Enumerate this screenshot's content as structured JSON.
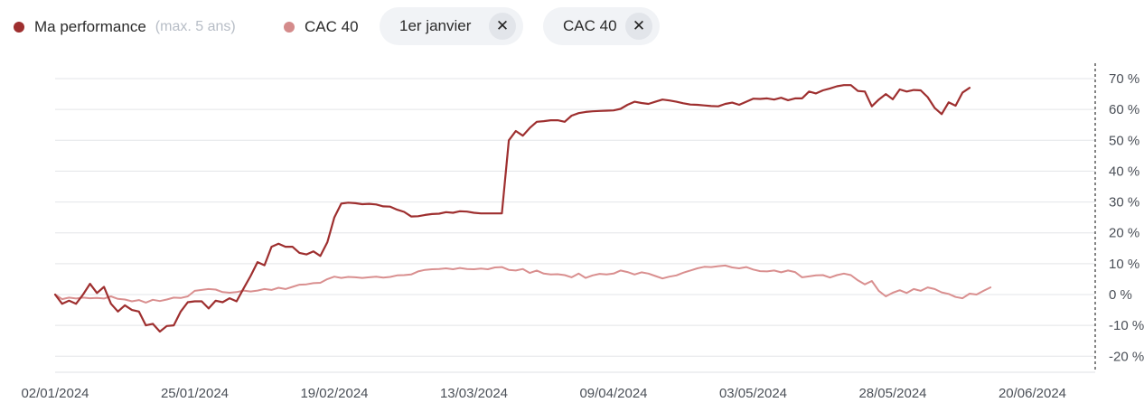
{
  "legend": {
    "performance": {
      "label": "Ma performance",
      "note": "(max. 5 ans)",
      "color": "#9e2f2f"
    },
    "cac": {
      "label": "CAC 40",
      "color": "#d48b8b"
    }
  },
  "filters": [
    {
      "label": "1er janvier",
      "close_glyph": "✕"
    },
    {
      "label": "CAC 40",
      "close_glyph": "✕"
    }
  ],
  "colors": {
    "performance": "#9e2f2f",
    "cac": "#d98f8f",
    "grid": "#e3e5e8",
    "axis": "#333333"
  },
  "chart_data": {
    "type": "line",
    "x_tick_labels": [
      "02/01/2024",
      "25/01/2024",
      "19/02/2024",
      "13/03/2024",
      "09/04/2024",
      "03/05/2024",
      "28/05/2024",
      "20/06/2024"
    ],
    "y_tick_labels": [
      "70 %",
      "60 %",
      "50 %",
      "40 %",
      "30 %",
      "20 %",
      "10 %",
      "0 %",
      "-10 %",
      "-20 %"
    ],
    "y_ticks": [
      70,
      60,
      50,
      40,
      30,
      20,
      10,
      0,
      -10,
      -20
    ],
    "ylim": [
      -25,
      73
    ],
    "x_range": [
      0,
      149
    ],
    "x_tick_index": [
      0,
      20,
      40,
      60,
      80,
      100,
      120,
      140
    ],
    "legend_position": "top-left",
    "grid": true,
    "series": [
      {
        "name": "Ma performance",
        "points": [
          [
            0,
            0
          ],
          [
            1,
            -3
          ],
          [
            2,
            -2
          ],
          [
            3,
            -3
          ],
          [
            4,
            0
          ],
          [
            5,
            3.5
          ],
          [
            6,
            0.5
          ],
          [
            7,
            2.5
          ],
          [
            8,
            -3
          ],
          [
            9,
            -5.5
          ],
          [
            10,
            -3.5
          ],
          [
            11,
            -5
          ],
          [
            12,
            -5.5
          ],
          [
            13,
            -10
          ],
          [
            14,
            -9.5
          ],
          [
            15,
            -12
          ],
          [
            16,
            -10.2
          ],
          [
            17,
            -10
          ],
          [
            18,
            -5.5
          ],
          [
            19,
            -2.5
          ],
          [
            20,
            -2.2
          ],
          [
            21,
            -2.2
          ],
          [
            22,
            -4.5
          ],
          [
            23,
            -2
          ],
          [
            24,
            -2.5
          ],
          [
            25,
            -1.2
          ],
          [
            26,
            -2.2
          ],
          [
            27,
            2
          ],
          [
            28,
            6
          ],
          [
            29,
            10.5
          ],
          [
            30,
            9.5
          ],
          [
            31,
            15.5
          ],
          [
            32,
            16.5
          ],
          [
            33,
            15.5
          ],
          [
            34,
            15.5
          ],
          [
            35,
            13.5
          ],
          [
            36,
            13
          ],
          [
            37,
            14
          ],
          [
            38,
            12.5
          ],
          [
            39,
            17
          ],
          [
            40,
            25
          ],
          [
            41,
            29.5
          ],
          [
            42,
            29.8
          ],
          [
            43,
            29.6
          ],
          [
            44,
            29.3
          ],
          [
            45,
            29.4
          ],
          [
            46,
            29.2
          ],
          [
            47,
            28.6
          ],
          [
            48,
            28.5
          ],
          [
            49,
            27.5
          ],
          [
            50,
            26.8
          ],
          [
            51,
            25.3
          ],
          [
            52,
            25.4
          ],
          [
            53,
            25.8
          ],
          [
            54,
            26.1
          ],
          [
            55,
            26.2
          ],
          [
            56,
            26.7
          ],
          [
            57,
            26.5
          ],
          [
            58,
            27
          ],
          [
            59,
            26.9
          ],
          [
            60,
            26.5
          ],
          [
            61,
            26.3
          ],
          [
            62,
            26.3
          ],
          [
            63,
            26.3
          ],
          [
            64,
            26.3
          ],
          [
            65,
            50
          ],
          [
            66,
            53
          ],
          [
            67,
            51.5
          ],
          [
            68,
            54
          ],
          [
            69,
            56
          ],
          [
            70,
            56.2
          ],
          [
            71,
            56.5
          ],
          [
            72,
            56.5
          ],
          [
            73,
            56
          ],
          [
            74,
            58
          ],
          [
            75,
            58.8
          ],
          [
            76,
            59.2
          ],
          [
            77,
            59.4
          ],
          [
            78,
            59.5
          ],
          [
            79,
            59.6
          ],
          [
            80,
            59.7
          ],
          [
            81,
            60.2
          ],
          [
            82,
            61.5
          ],
          [
            83,
            62.5
          ],
          [
            84,
            62.1
          ],
          [
            85,
            61.8
          ],
          [
            86,
            62.5
          ],
          [
            87,
            63.2
          ],
          [
            88,
            62.9
          ],
          [
            89,
            62.5
          ],
          [
            90,
            62
          ],
          [
            91,
            61.6
          ],
          [
            92,
            61.5
          ],
          [
            93,
            61.3
          ],
          [
            94,
            61.1
          ],
          [
            95,
            61
          ],
          [
            96,
            61.8
          ],
          [
            97,
            62.2
          ],
          [
            98,
            61.5
          ],
          [
            99,
            62.5
          ],
          [
            100,
            63.5
          ],
          [
            101,
            63.4
          ],
          [
            102,
            63.6
          ],
          [
            103,
            63.2
          ],
          [
            104,
            63.8
          ],
          [
            105,
            63
          ],
          [
            106,
            63.6
          ],
          [
            107,
            63.6
          ],
          [
            108,
            65.8
          ],
          [
            109,
            65.2
          ],
          [
            110,
            66.2
          ],
          [
            111,
            66.8
          ],
          [
            112,
            67.5
          ],
          [
            113,
            67.9
          ],
          [
            114,
            67.9
          ],
          [
            115,
            66
          ],
          [
            116,
            65.8
          ],
          [
            117,
            61
          ],
          [
            118,
            63.2
          ],
          [
            119,
            65
          ],
          [
            120,
            63.3
          ],
          [
            121,
            66.5
          ],
          [
            122,
            65.8
          ],
          [
            123,
            66.3
          ],
          [
            124,
            66.2
          ],
          [
            125,
            64
          ],
          [
            126,
            60.5
          ],
          [
            127,
            58.5
          ],
          [
            128,
            62.3
          ],
          [
            129,
            61.2
          ],
          [
            130,
            65.5
          ],
          [
            131,
            67
          ]
        ]
      },
      {
        "name": "CAC 40",
        "points": [
          [
            0,
            0
          ],
          [
            1,
            -1.5
          ],
          [
            2,
            -1
          ],
          [
            3,
            -1.3
          ],
          [
            4,
            -1
          ],
          [
            5,
            -1.2
          ],
          [
            6,
            -1.1
          ],
          [
            7,
            -1.3
          ],
          [
            8,
            -0.6
          ],
          [
            9,
            -1.4
          ],
          [
            10,
            -1.6
          ],
          [
            11,
            -2.2
          ],
          [
            12,
            -1.8
          ],
          [
            13,
            -2.6
          ],
          [
            14,
            -1.7
          ],
          [
            15,
            -2.1
          ],
          [
            16,
            -1.6
          ],
          [
            17,
            -1
          ],
          [
            18,
            -1.1
          ],
          [
            19,
            -0.6
          ],
          [
            20,
            1.2
          ],
          [
            21,
            1.5
          ],
          [
            22,
            1.8
          ],
          [
            23,
            1.6
          ],
          [
            24,
            0.8
          ],
          [
            25,
            0.6
          ],
          [
            26,
            0.8
          ],
          [
            27,
            1.3
          ],
          [
            28,
            1
          ],
          [
            29,
            1.3
          ],
          [
            30,
            1.8
          ],
          [
            31,
            1.5
          ],
          [
            32,
            2.2
          ],
          [
            33,
            1.8
          ],
          [
            34,
            2.5
          ],
          [
            35,
            3.2
          ],
          [
            36,
            3.3
          ],
          [
            37,
            3.7
          ],
          [
            38,
            3.8
          ],
          [
            39,
            5
          ],
          [
            40,
            5.8
          ],
          [
            41,
            5.4
          ],
          [
            42,
            5.7
          ],
          [
            43,
            5.6
          ],
          [
            44,
            5.4
          ],
          [
            45,
            5.6
          ],
          [
            46,
            5.8
          ],
          [
            47,
            5.5
          ],
          [
            48,
            5.7
          ],
          [
            49,
            6.2
          ],
          [
            50,
            6.3
          ],
          [
            51,
            6.5
          ],
          [
            52,
            7.5
          ],
          [
            53,
            8
          ],
          [
            54,
            8.2
          ],
          [
            55,
            8.3
          ],
          [
            56,
            8.5
          ],
          [
            57,
            8.2
          ],
          [
            58,
            8.6
          ],
          [
            59,
            8.3
          ],
          [
            60,
            8.2
          ],
          [
            61,
            8.4
          ],
          [
            62,
            8.2
          ],
          [
            63,
            8.8
          ],
          [
            64,
            8.9
          ],
          [
            65,
            8
          ],
          [
            66,
            7.8
          ],
          [
            67,
            8.3
          ],
          [
            68,
            7
          ],
          [
            69,
            7.8
          ],
          [
            70,
            6.8
          ],
          [
            71,
            6.5
          ],
          [
            72,
            6.6
          ],
          [
            73,
            6.3
          ],
          [
            74,
            5.6
          ],
          [
            75,
            6.8
          ],
          [
            76,
            5.4
          ],
          [
            77,
            6.2
          ],
          [
            78,
            6.7
          ],
          [
            79,
            6.5
          ],
          [
            80,
            6.8
          ],
          [
            81,
            7.8
          ],
          [
            82,
            7.3
          ],
          [
            83,
            6.5
          ],
          [
            84,
            7.2
          ],
          [
            85,
            6.8
          ],
          [
            86,
            6
          ],
          [
            87,
            5.2
          ],
          [
            88,
            5.8
          ],
          [
            89,
            6.2
          ],
          [
            90,
            7.1
          ],
          [
            91,
            7.8
          ],
          [
            92,
            8.5
          ],
          [
            93,
            9
          ],
          [
            94,
            8.9
          ],
          [
            95,
            9.2
          ],
          [
            96,
            9.4
          ],
          [
            97,
            8.8
          ],
          [
            98,
            8.5
          ],
          [
            99,
            8.9
          ],
          [
            100,
            8.1
          ],
          [
            101,
            7.6
          ],
          [
            102,
            7.5
          ],
          [
            103,
            7.8
          ],
          [
            104,
            7.2
          ],
          [
            105,
            7.8
          ],
          [
            106,
            7.3
          ],
          [
            107,
            5.6
          ],
          [
            108,
            5.9
          ],
          [
            109,
            6.2
          ],
          [
            110,
            6.3
          ],
          [
            111,
            5.5
          ],
          [
            112,
            6.3
          ],
          [
            113,
            6.8
          ],
          [
            114,
            6.3
          ],
          [
            115,
            4.6
          ],
          [
            116,
            3.3
          ],
          [
            117,
            4.4
          ],
          [
            118,
            1.2
          ],
          [
            119,
            -0.6
          ],
          [
            120,
            0.6
          ],
          [
            121,
            1.4
          ],
          [
            122,
            0.5
          ],
          [
            123,
            1.8
          ],
          [
            124,
            1.2
          ],
          [
            125,
            2.3
          ],
          [
            126,
            1.8
          ],
          [
            127,
            0.7
          ],
          [
            128,
            0.2
          ],
          [
            129,
            -0.8
          ],
          [
            130,
            -1.2
          ],
          [
            131,
            0.3
          ],
          [
            132,
            0
          ],
          [
            133,
            1.2
          ],
          [
            134,
            2.3
          ]
        ]
      }
    ]
  }
}
